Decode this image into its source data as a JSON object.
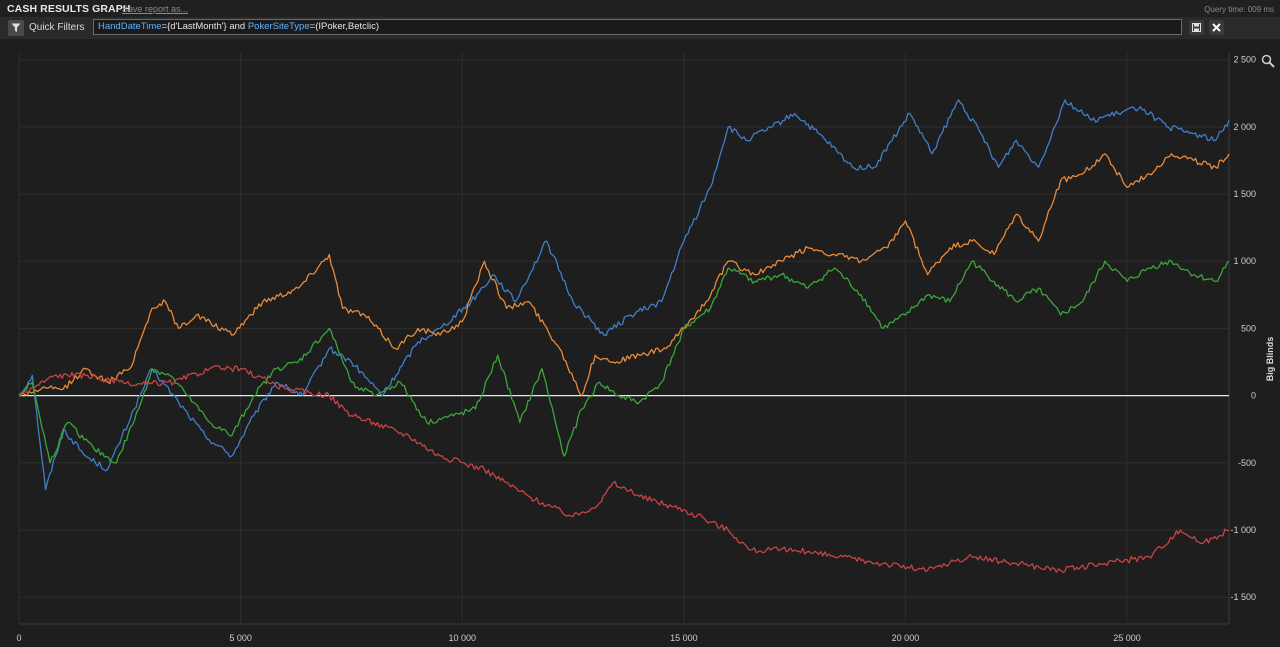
{
  "header": {
    "title": "CASH RESULTS GRAPH",
    "save_link": "Save report as...",
    "query_time": "Query time: 009 ms"
  },
  "filter": {
    "button_label": "Quick Filters",
    "kw1": "HandDateTime",
    "rest1": "={d'LastMonth'} and ",
    "kw2": "PokerSiteType",
    "rest2": "=(IPoker,Betclic)"
  },
  "icons": {
    "filter": "filter-icon",
    "save": "save-icon",
    "clear": "close-icon",
    "zoom": "magnifier-icon"
  },
  "chart_data": {
    "type": "line",
    "title": "",
    "xlabel": "",
    "ylabel": "Big Blinds",
    "xlim": [
      0,
      27300
    ],
    "ylim": [
      -1700,
      2550
    ],
    "x_ticks": [
      0,
      5000,
      10000,
      15000,
      20000,
      25000
    ],
    "x_tick_labels": [
      "0",
      "5 000",
      "10 000",
      "15 000",
      "20 000",
      "25 000"
    ],
    "y_ticks": [
      -1500,
      -1000,
      -500,
      0,
      500,
      1000,
      1500,
      2000,
      2500
    ],
    "y_tick_labels": [
      "-1 500",
      "-1 000",
      "-500",
      "0",
      "500",
      "1 000",
      "1 500",
      "2 000",
      "2 500"
    ],
    "y_axis_position": "right",
    "grid": true,
    "legend": "none",
    "series": [
      {
        "color": "#3f7fc9",
        "x": [
          0,
          300,
          600,
          1000,
          1500,
          2000,
          2600,
          3000,
          3600,
          4200,
          4800,
          5300,
          5800,
          6400,
          7000,
          7500,
          8200,
          9000,
          9500,
          10200,
          10700,
          11200,
          11900,
          12500,
          13200,
          13800,
          14500,
          15000,
          15600,
          16000,
          16400,
          17000,
          17500,
          18200,
          18800,
          19300,
          19700,
          20100,
          20600,
          21200,
          21700,
          22100,
          22500,
          23000,
          23600,
          24200,
          24800,
          25300,
          25900,
          26500,
          27000,
          27300
        ],
        "y": [
          0,
          150,
          -700,
          -250,
          -450,
          -550,
          -100,
          200,
          -50,
          -300,
          -450,
          -150,
          100,
          0,
          350,
          250,
          0,
          400,
          500,
          700,
          900,
          700,
          1150,
          700,
          450,
          600,
          700,
          1150,
          1550,
          2000,
          1900,
          2000,
          2100,
          1900,
          1700,
          1700,
          1900,
          2100,
          1800,
          2200,
          1950,
          1700,
          1900,
          1700,
          2200,
          2050,
          2100,
          2150,
          2000,
          1950,
          1900,
          2050
        ]
      },
      {
        "color": "#e88a3a",
        "x": [
          0,
          500,
          1000,
          1500,
          2000,
          2500,
          3000,
          3300,
          3600,
          4000,
          4800,
          5500,
          6300,
          7000,
          7300,
          7800,
          8500,
          9000,
          9500,
          10000,
          10500,
          11000,
          11500,
          12200,
          12700,
          13000,
          13400,
          14000,
          14600,
          15000,
          15500,
          16000,
          16600,
          17200,
          17800,
          18400,
          19000,
          19600,
          20000,
          20500,
          21000,
          21500,
          22000,
          22500,
          23000,
          23500,
          24000,
          24500,
          25000,
          25500,
          26000,
          26500,
          27000,
          27300
        ],
        "y": [
          0,
          50,
          50,
          200,
          100,
          200,
          650,
          700,
          500,
          600,
          450,
          700,
          800,
          1050,
          650,
          600,
          350,
          500,
          450,
          550,
          1000,
          650,
          700,
          350,
          0,
          300,
          250,
          300,
          350,
          500,
          700,
          1000,
          900,
          1000,
          1100,
          1050,
          1000,
          1100,
          1300,
          900,
          1100,
          1150,
          1050,
          1350,
          1150,
          1600,
          1650,
          1800,
          1550,
          1650,
          1800,
          1750,
          1700,
          1800
        ]
      },
      {
        "color": "#3aa63a",
        "x": [
          0,
          300,
          700,
          1100,
          1700,
          2200,
          2700,
          3000,
          3400,
          3800,
          4300,
          4800,
          5300,
          5800,
          6300,
          7000,
          7500,
          8000,
          8600,
          9200,
          9800,
          10300,
          10800,
          11300,
          11800,
          12300,
          12700,
          13100,
          13500,
          14000,
          14500,
          15000,
          15600,
          16000,
          16600,
          17200,
          17800,
          18400,
          19000,
          19500,
          20000,
          20500,
          21000,
          21500,
          22000,
          22500,
          23000,
          23500,
          24000,
          24500,
          25000,
          25500,
          26000,
          26500,
          27000,
          27300
        ],
        "y": [
          0,
          100,
          -500,
          -200,
          -400,
          -500,
          -100,
          200,
          150,
          0,
          -200,
          -300,
          0,
          200,
          250,
          500,
          100,
          0,
          100,
          -200,
          -150,
          -100,
          300,
          -200,
          200,
          -450,
          -100,
          100,
          0,
          -50,
          100,
          500,
          650,
          950,
          850,
          900,
          800,
          950,
          750,
          500,
          600,
          750,
          700,
          1000,
          850,
          700,
          800,
          600,
          700,
          1000,
          850,
          950,
          1000,
          900,
          850,
          1000
        ]
      },
      {
        "color": "#c84444",
        "x": [
          0,
          800,
          1500,
          2500,
          3500,
          4300,
          5000,
          6000,
          7000,
          7500,
          8000,
          8800,
          9500,
          10500,
          11500,
          12500,
          13100,
          13400,
          14000,
          15000,
          16000,
          16500,
          17500,
          18500,
          19500,
          20500,
          21500,
          22500,
          23500,
          24500,
          25500,
          26200,
          26700,
          27300
        ],
        "y": [
          0,
          150,
          150,
          80,
          100,
          200,
          200,
          50,
          0,
          -150,
          -200,
          -300,
          -450,
          -550,
          -750,
          -900,
          -800,
          -650,
          -750,
          -850,
          -1000,
          -1150,
          -1150,
          -1200,
          -1250,
          -1300,
          -1200,
          -1250,
          -1300,
          -1250,
          -1200,
          -1000,
          -1100,
          -1000
        ]
      }
    ]
  }
}
